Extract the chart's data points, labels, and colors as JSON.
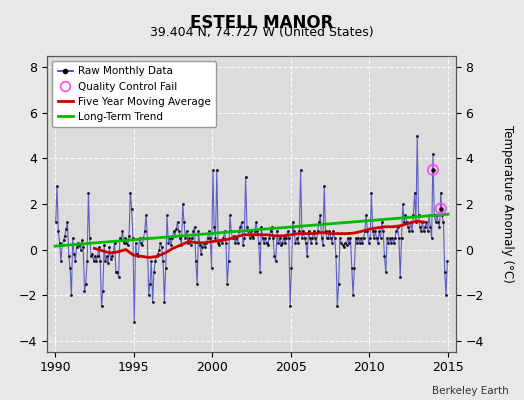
{
  "title": "ESTELL MANOR",
  "subtitle": "39.404 N, 74.727 W (United States)",
  "ylabel": "Temperature Anomaly (°C)",
  "credit": "Berkeley Earth",
  "ylim": [
    -4.5,
    8.5
  ],
  "xlim": [
    1989.5,
    2015.5
  ],
  "xticks": [
    1990,
    1995,
    2000,
    2005,
    2010,
    2015
  ],
  "yticks": [
    -4,
    -2,
    0,
    2,
    4,
    6,
    8
  ],
  "bg_color": "#e8e8e8",
  "plot_bg_color": "#dcdcdc",
  "grid_color": "#ffffff",
  "line_color_raw": "#3333bb",
  "marker_color_raw": "#111111",
  "line_color_moving_avg": "#cc0000",
  "line_color_trend": "#00bb00",
  "qc_fail_color": "#ff44ff",
  "raw_monthly_data": [
    [
      1990.042,
      1.2
    ],
    [
      1990.125,
      2.8
    ],
    [
      1990.208,
      0.8
    ],
    [
      1990.292,
      0.3
    ],
    [
      1990.375,
      -0.5
    ],
    [
      1990.458,
      0.2
    ],
    [
      1990.542,
      0.4
    ],
    [
      1990.625,
      0.6
    ],
    [
      1990.708,
      0.9
    ],
    [
      1990.792,
      1.2
    ],
    [
      1990.875,
      -0.3
    ],
    [
      1990.958,
      -0.8
    ],
    [
      1991.042,
      -2.0
    ],
    [
      1991.125,
      0.5
    ],
    [
      1991.208,
      -0.2
    ],
    [
      1991.292,
      -0.5
    ],
    [
      1991.375,
      0.1
    ],
    [
      1991.458,
      0.3
    ],
    [
      1991.542,
      0.2
    ],
    [
      1991.625,
      0.0
    ],
    [
      1991.708,
      0.4
    ],
    [
      1991.792,
      0.1
    ],
    [
      1991.875,
      -1.8
    ],
    [
      1991.958,
      -1.5
    ],
    [
      1992.042,
      -0.5
    ],
    [
      1992.125,
      2.5
    ],
    [
      1992.208,
      0.5
    ],
    [
      1992.292,
      -0.3
    ],
    [
      1992.375,
      -0.2
    ],
    [
      1992.458,
      -0.5
    ],
    [
      1992.542,
      -0.3
    ],
    [
      1992.625,
      -0.5
    ],
    [
      1992.708,
      -0.3
    ],
    [
      1992.792,
      0.1
    ],
    [
      1992.875,
      -0.5
    ],
    [
      1992.958,
      -2.5
    ],
    [
      1993.042,
      -1.8
    ],
    [
      1993.125,
      0.2
    ],
    [
      1993.208,
      -0.5
    ],
    [
      1993.292,
      -0.3
    ],
    [
      1993.375,
      -0.6
    ],
    [
      1993.458,
      0.1
    ],
    [
      1993.542,
      -0.4
    ],
    [
      1993.625,
      -0.3
    ],
    [
      1993.708,
      -0.1
    ],
    [
      1993.792,
      0.3
    ],
    [
      1993.875,
      -1.0
    ],
    [
      1993.958,
      -1.0
    ],
    [
      1994.042,
      -1.2
    ],
    [
      1994.125,
      0.5
    ],
    [
      1994.208,
      0.4
    ],
    [
      1994.292,
      0.8
    ],
    [
      1994.375,
      0.3
    ],
    [
      1994.458,
      0.5
    ],
    [
      1994.542,
      0.3
    ],
    [
      1994.625,
      0.2
    ],
    [
      1994.708,
      0.6
    ],
    [
      1994.792,
      2.5
    ],
    [
      1994.875,
      1.8
    ],
    [
      1994.958,
      0.5
    ],
    [
      1995.042,
      -3.2
    ],
    [
      1995.125,
      0.3
    ],
    [
      1995.208,
      -0.2
    ],
    [
      1995.292,
      -0.3
    ],
    [
      1995.375,
      0.5
    ],
    [
      1995.458,
      0.3
    ],
    [
      1995.542,
      0.2
    ],
    [
      1995.625,
      0.5
    ],
    [
      1995.708,
      0.8
    ],
    [
      1995.792,
      1.5
    ],
    [
      1995.875,
      0.5
    ],
    [
      1995.958,
      -2.0
    ],
    [
      1996.042,
      -1.5
    ],
    [
      1996.125,
      -0.5
    ],
    [
      1996.208,
      -2.3
    ],
    [
      1996.292,
      -1.0
    ],
    [
      1996.375,
      -0.5
    ],
    [
      1996.458,
      -0.3
    ],
    [
      1996.542,
      -0.2
    ],
    [
      1996.625,
      0.0
    ],
    [
      1996.708,
      0.3
    ],
    [
      1996.792,
      0.1
    ],
    [
      1996.875,
      -0.5
    ],
    [
      1996.958,
      -2.3
    ],
    [
      1997.042,
      -0.8
    ],
    [
      1997.125,
      1.5
    ],
    [
      1997.208,
      0.3
    ],
    [
      1997.292,
      0.5
    ],
    [
      1997.375,
      0.2
    ],
    [
      1997.458,
      0.5
    ],
    [
      1997.542,
      0.8
    ],
    [
      1997.625,
      0.6
    ],
    [
      1997.708,
      0.9
    ],
    [
      1997.792,
      1.2
    ],
    [
      1997.875,
      0.8
    ],
    [
      1997.958,
      0.5
    ],
    [
      1998.042,
      0.2
    ],
    [
      1998.125,
      2.0
    ],
    [
      1998.208,
      1.2
    ],
    [
      1998.292,
      0.5
    ],
    [
      1998.375,
      0.8
    ],
    [
      1998.458,
      0.3
    ],
    [
      1998.542,
      0.5
    ],
    [
      1998.625,
      0.2
    ],
    [
      1998.708,
      0.5
    ],
    [
      1998.792,
      0.8
    ],
    [
      1998.875,
      1.0
    ],
    [
      1998.958,
      -0.5
    ],
    [
      1999.042,
      -1.5
    ],
    [
      1999.125,
      0.8
    ],
    [
      1999.208,
      0.2
    ],
    [
      1999.292,
      -0.2
    ],
    [
      1999.375,
      0.1
    ],
    [
      1999.458,
      0.3
    ],
    [
      1999.542,
      0.1
    ],
    [
      1999.625,
      0.3
    ],
    [
      1999.708,
      0.5
    ],
    [
      1999.792,
      0.8
    ],
    [
      1999.875,
      0.5
    ],
    [
      1999.958,
      -0.8
    ],
    [
      2000.042,
      3.5
    ],
    [
      2000.125,
      1.0
    ],
    [
      2000.208,
      0.5
    ],
    [
      2000.292,
      3.5
    ],
    [
      2000.375,
      0.3
    ],
    [
      2000.458,
      0.2
    ],
    [
      2000.542,
      0.4
    ],
    [
      2000.625,
      0.3
    ],
    [
      2000.708,
      0.5
    ],
    [
      2000.792,
      0.8
    ],
    [
      2000.875,
      0.3
    ],
    [
      2000.958,
      -1.5
    ],
    [
      2001.042,
      -0.5
    ],
    [
      2001.125,
      1.5
    ],
    [
      2001.208,
      0.8
    ],
    [
      2001.292,
      0.5
    ],
    [
      2001.375,
      0.6
    ],
    [
      2001.458,
      0.3
    ],
    [
      2001.542,
      0.5
    ],
    [
      2001.625,
      0.3
    ],
    [
      2001.708,
      0.8
    ],
    [
      2001.792,
      1.0
    ],
    [
      2001.875,
      1.2
    ],
    [
      2001.958,
      0.2
    ],
    [
      2002.042,
      0.5
    ],
    [
      2002.125,
      3.2
    ],
    [
      2002.208,
      1.0
    ],
    [
      2002.292,
      0.8
    ],
    [
      2002.375,
      0.5
    ],
    [
      2002.458,
      0.8
    ],
    [
      2002.542,
      0.6
    ],
    [
      2002.625,
      0.5
    ],
    [
      2002.708,
      0.8
    ],
    [
      2002.792,
      1.2
    ],
    [
      2002.875,
      0.8
    ],
    [
      2002.958,
      0.3
    ],
    [
      2003.042,
      -1.0
    ],
    [
      2003.125,
      1.0
    ],
    [
      2003.208,
      0.5
    ],
    [
      2003.292,
      0.3
    ],
    [
      2003.375,
      0.5
    ],
    [
      2003.458,
      0.3
    ],
    [
      2003.542,
      0.2
    ],
    [
      2003.625,
      0.5
    ],
    [
      2003.708,
      0.8
    ],
    [
      2003.792,
      1.0
    ],
    [
      2003.875,
      0.5
    ],
    [
      2003.958,
      -0.3
    ],
    [
      2004.042,
      -0.5
    ],
    [
      2004.125,
      0.8
    ],
    [
      2004.208,
      0.3
    ],
    [
      2004.292,
      0.5
    ],
    [
      2004.375,
      0.2
    ],
    [
      2004.458,
      0.3
    ],
    [
      2004.542,
      0.5
    ],
    [
      2004.625,
      0.3
    ],
    [
      2004.708,
      0.5
    ],
    [
      2004.792,
      0.8
    ],
    [
      2004.875,
      0.5
    ],
    [
      2004.958,
      -2.5
    ],
    [
      2005.042,
      -0.8
    ],
    [
      2005.125,
      1.2
    ],
    [
      2005.208,
      0.8
    ],
    [
      2005.292,
      0.3
    ],
    [
      2005.375,
      0.5
    ],
    [
      2005.458,
      0.3
    ],
    [
      2005.542,
      0.8
    ],
    [
      2005.625,
      3.5
    ],
    [
      2005.708,
      0.5
    ],
    [
      2005.792,
      0.8
    ],
    [
      2005.875,
      0.5
    ],
    [
      2005.958,
      0.3
    ],
    [
      2006.042,
      -0.3
    ],
    [
      2006.125,
      0.8
    ],
    [
      2006.208,
      0.5
    ],
    [
      2006.292,
      0.3
    ],
    [
      2006.375,
      0.5
    ],
    [
      2006.458,
      0.8
    ],
    [
      2006.542,
      0.5
    ],
    [
      2006.625,
      0.3
    ],
    [
      2006.708,
      0.8
    ],
    [
      2006.792,
      1.2
    ],
    [
      2006.875,
      1.5
    ],
    [
      2006.958,
      0.5
    ],
    [
      2007.042,
      0.2
    ],
    [
      2007.125,
      2.8
    ],
    [
      2007.208,
      0.8
    ],
    [
      2007.292,
      0.5
    ],
    [
      2007.375,
      0.5
    ],
    [
      2007.458,
      0.8
    ],
    [
      2007.542,
      0.5
    ],
    [
      2007.625,
      0.3
    ],
    [
      2007.708,
      0.8
    ],
    [
      2007.792,
      0.5
    ],
    [
      2007.875,
      -0.3
    ],
    [
      2007.958,
      -2.5
    ],
    [
      2008.042,
      -1.5
    ],
    [
      2008.125,
      0.5
    ],
    [
      2008.208,
      0.3
    ],
    [
      2008.292,
      0.2
    ],
    [
      2008.375,
      0.1
    ],
    [
      2008.458,
      0.3
    ],
    [
      2008.542,
      0.2
    ],
    [
      2008.625,
      0.5
    ],
    [
      2008.708,
      0.3
    ],
    [
      2008.792,
      0.5
    ],
    [
      2008.875,
      -0.8
    ],
    [
      2008.958,
      -2.0
    ],
    [
      2009.042,
      -0.8
    ],
    [
      2009.125,
      0.5
    ],
    [
      2009.208,
      0.3
    ],
    [
      2009.292,
      0.5
    ],
    [
      2009.375,
      0.3
    ],
    [
      2009.458,
      0.5
    ],
    [
      2009.542,
      0.3
    ],
    [
      2009.625,
      0.5
    ],
    [
      2009.708,
      0.8
    ],
    [
      2009.792,
      1.5
    ],
    [
      2009.875,
      0.8
    ],
    [
      2009.958,
      0.3
    ],
    [
      2010.042,
      0.5
    ],
    [
      2010.125,
      2.5
    ],
    [
      2010.208,
      0.8
    ],
    [
      2010.292,
      0.5
    ],
    [
      2010.375,
      0.8
    ],
    [
      2010.458,
      0.5
    ],
    [
      2010.542,
      0.3
    ],
    [
      2010.625,
      0.8
    ],
    [
      2010.708,
      0.5
    ],
    [
      2010.792,
      1.2
    ],
    [
      2010.875,
      0.8
    ],
    [
      2010.958,
      -0.3
    ],
    [
      2011.042,
      -1.0
    ],
    [
      2011.125,
      0.5
    ],
    [
      2011.208,
      0.3
    ],
    [
      2011.292,
      0.5
    ],
    [
      2011.375,
      0.3
    ],
    [
      2011.458,
      0.5
    ],
    [
      2011.542,
      0.3
    ],
    [
      2011.625,
      0.5
    ],
    [
      2011.708,
      0.8
    ],
    [
      2011.792,
      1.0
    ],
    [
      2011.875,
      0.5
    ],
    [
      2011.958,
      -1.2
    ],
    [
      2012.042,
      0.5
    ],
    [
      2012.125,
      2.0
    ],
    [
      2012.208,
      1.2
    ],
    [
      2012.292,
      1.5
    ],
    [
      2012.375,
      1.2
    ],
    [
      2012.458,
      1.0
    ],
    [
      2012.542,
      0.8
    ],
    [
      2012.625,
      1.2
    ],
    [
      2012.708,
      0.8
    ],
    [
      2012.792,
      1.5
    ],
    [
      2012.875,
      2.5
    ],
    [
      2012.958,
      1.2
    ],
    [
      2013.042,
      5.0
    ],
    [
      2013.125,
      1.5
    ],
    [
      2013.208,
      1.0
    ],
    [
      2013.292,
      0.8
    ],
    [
      2013.375,
      1.2
    ],
    [
      2013.458,
      0.8
    ],
    [
      2013.542,
      1.0
    ],
    [
      2013.625,
      1.2
    ],
    [
      2013.708,
      0.8
    ],
    [
      2013.792,
      1.5
    ],
    [
      2013.875,
      1.0
    ],
    [
      2013.958,
      0.5
    ],
    [
      2014.042,
      4.2
    ],
    [
      2014.125,
      1.5
    ],
    [
      2014.208,
      1.2
    ],
    [
      2014.292,
      1.5
    ],
    [
      2014.375,
      1.2
    ],
    [
      2014.458,
      1.0
    ],
    [
      2014.542,
      2.5
    ],
    [
      2014.625,
      1.5
    ],
    [
      2014.708,
      1.2
    ],
    [
      2014.792,
      -1.0
    ],
    [
      2014.875,
      -2.0
    ],
    [
      2014.958,
      -0.5
    ]
  ],
  "qc_fail_points": [
    [
      2014.042,
      3.5
    ],
    [
      2014.542,
      1.8
    ]
  ],
  "moving_avg": [
    [
      1992.5,
      0.05
    ],
    [
      1993.0,
      -0.05
    ],
    [
      1993.5,
      -0.15
    ],
    [
      1994.0,
      -0.1
    ],
    [
      1994.5,
      0.0
    ],
    [
      1995.0,
      -0.25
    ],
    [
      1995.5,
      -0.3
    ],
    [
      1996.0,
      -0.35
    ],
    [
      1996.5,
      -0.3
    ],
    [
      1997.0,
      -0.15
    ],
    [
      1997.5,
      0.05
    ],
    [
      1998.0,
      0.2
    ],
    [
      1998.5,
      0.35
    ],
    [
      1999.0,
      0.3
    ],
    [
      1999.5,
      0.3
    ],
    [
      2000.0,
      0.35
    ],
    [
      2000.5,
      0.4
    ],
    [
      2001.0,
      0.45
    ],
    [
      2001.5,
      0.55
    ],
    [
      2002.0,
      0.65
    ],
    [
      2002.5,
      0.65
    ],
    [
      2003.0,
      0.65
    ],
    [
      2003.5,
      0.65
    ],
    [
      2004.0,
      0.6
    ],
    [
      2004.5,
      0.6
    ],
    [
      2005.0,
      0.65
    ],
    [
      2005.5,
      0.7
    ],
    [
      2006.0,
      0.7
    ],
    [
      2006.5,
      0.7
    ],
    [
      2007.0,
      0.75
    ],
    [
      2007.5,
      0.7
    ],
    [
      2008.0,
      0.7
    ],
    [
      2008.5,
      0.7
    ],
    [
      2009.0,
      0.72
    ],
    [
      2009.5,
      0.8
    ],
    [
      2010.0,
      0.9
    ],
    [
      2010.5,
      0.95
    ],
    [
      2011.0,
      1.0
    ],
    [
      2011.5,
      1.0
    ],
    [
      2012.0,
      1.05
    ],
    [
      2012.5,
      1.15
    ],
    [
      2013.0,
      1.25
    ],
    [
      2013.5,
      1.2
    ]
  ],
  "trend_line": [
    [
      1990.0,
      0.15
    ],
    [
      2015.0,
      1.55
    ]
  ],
  "figsize": [
    5.24,
    4.0
  ],
  "dpi": 100
}
